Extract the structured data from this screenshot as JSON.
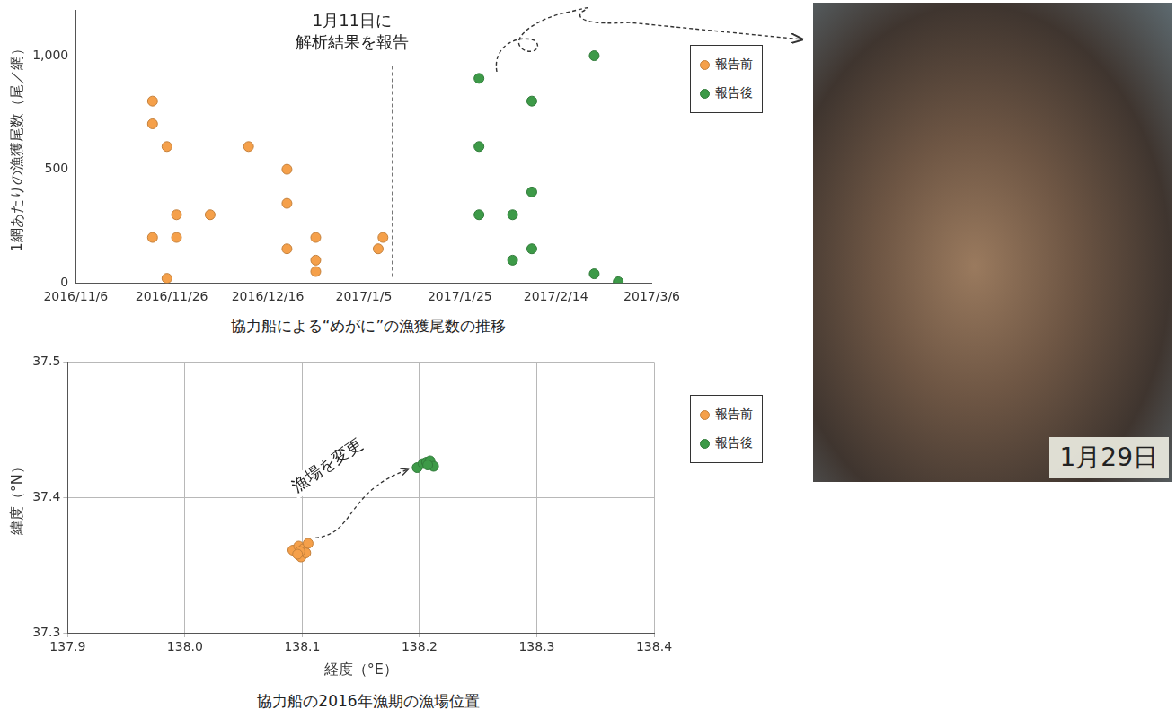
{
  "chart_data": [
    {
      "type": "scatter",
      "title": "協力船による“めがに”の漁獲尾数の推移",
      "y_label": "1網あたりの漁獲尾数（尾／網）",
      "xlim": [
        "2016/11/6",
        "2017/3/6"
      ],
      "xticks": [
        "2016/11/6",
        "2016/11/26",
        "2016/12/16",
        "2017/1/5",
        "2017/1/25",
        "2017/2/14",
        "2017/3/6"
      ],
      "ylim": [
        0,
        1200
      ],
      "yticks": [
        0,
        500,
        {
          "value": 1000,
          "label": "1,000"
        }
      ],
      "grid": false,
      "legend": "right",
      "series": [
        {
          "name": "報告前",
          "color": "#f5a04a",
          "marker": "circle",
          "x": [
            "2016/11/22",
            "2016/11/22",
            "2016/11/22",
            "2016/11/25",
            "2016/11/25",
            "2016/11/27",
            "2016/11/27",
            "2016/12/4",
            "2016/12/12",
            "2016/12/20",
            "2016/12/20",
            "2016/12/20",
            "2016/12/26",
            "2016/12/26",
            "2016/12/26",
            "2017/1/8",
            "2017/1/9"
          ],
          "values": [
            800,
            700,
            200,
            600,
            20,
            300,
            200,
            300,
            600,
            500,
            350,
            150,
            200,
            100,
            50,
            150,
            200
          ]
        },
        {
          "name": "報告後",
          "color": "#3d9a48",
          "marker": "circle",
          "x": [
            "2017/1/29",
            "2017/1/29",
            "2017/1/29",
            "2017/2/5",
            "2017/2/5",
            "2017/2/9",
            "2017/2/9",
            "2017/2/9",
            "2017/2/22",
            "2017/2/22",
            "2017/2/27"
          ],
          "values": [
            900,
            600,
            300,
            300,
            100,
            800,
            400,
            150,
            1000,
            40,
            5
          ]
        }
      ],
      "annotations": [
        {
          "text": "1月11日に\n解析結果を報告",
          "x": "2017/1/11"
        }
      ]
    },
    {
      "type": "scatter",
      "title": "協力船の2016年漁期の漁場位置",
      "x_label": "経度（°E）",
      "y_label": "緯度（°N）",
      "xlim": [
        137.9,
        138.4
      ],
      "xticks": [
        137.9,
        {
          "value": 138,
          "label": "138.0"
        },
        138.1,
        138.2,
        138.3,
        138.4
      ],
      "ylim": [
        37.3,
        37.5
      ],
      "yticks": [
        37.3,
        37.4,
        37.5
      ],
      "grid": true,
      "legend": "right",
      "series": [
        {
          "name": "報告前",
          "color": "#f5a04a",
          "marker": "circle",
          "x": [
            138.092,
            138.097,
            138.099,
            138.101,
            138.103,
            138.105,
            138.098,
            138.096
          ],
          "values": [
            37.361,
            37.364,
            37.356,
            37.362,
            37.359,
            37.366,
            37.36,
            37.358
          ]
        },
        {
          "name": "報告後",
          "color": "#3d9a48",
          "marker": "circle",
          "x": [
            138.198,
            138.203,
            138.206,
            138.209,
            138.212,
            138.207
          ],
          "values": [
            37.422,
            37.425,
            37.426,
            37.427,
            37.423,
            37.424
          ]
        }
      ],
      "annotations": [
        {
          "text": "漁場を変更"
        }
      ]
    }
  ],
  "photo": {
    "label": "1月29日"
  }
}
